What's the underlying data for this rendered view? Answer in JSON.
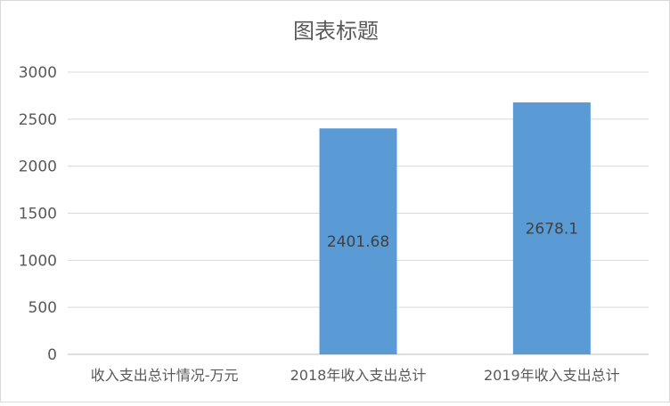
{
  "chart_data": {
    "type": "bar",
    "title": "图表标题",
    "xlabel": "",
    "ylabel": "",
    "categories": [
      "收入支出总计情况-万元",
      "2018年收入支出总计",
      "2019年收入支出总计"
    ],
    "values": [
      null,
      2401.68,
      2678.1
    ],
    "value_labels": [
      "",
      "2401.68",
      "2678.1"
    ],
    "ylim": [
      0,
      3000
    ],
    "yticks": [
      0,
      500,
      1000,
      1500,
      2000,
      2500,
      3000
    ],
    "grid": true,
    "legend": "none",
    "bar_color": "#5b9bd5"
  }
}
